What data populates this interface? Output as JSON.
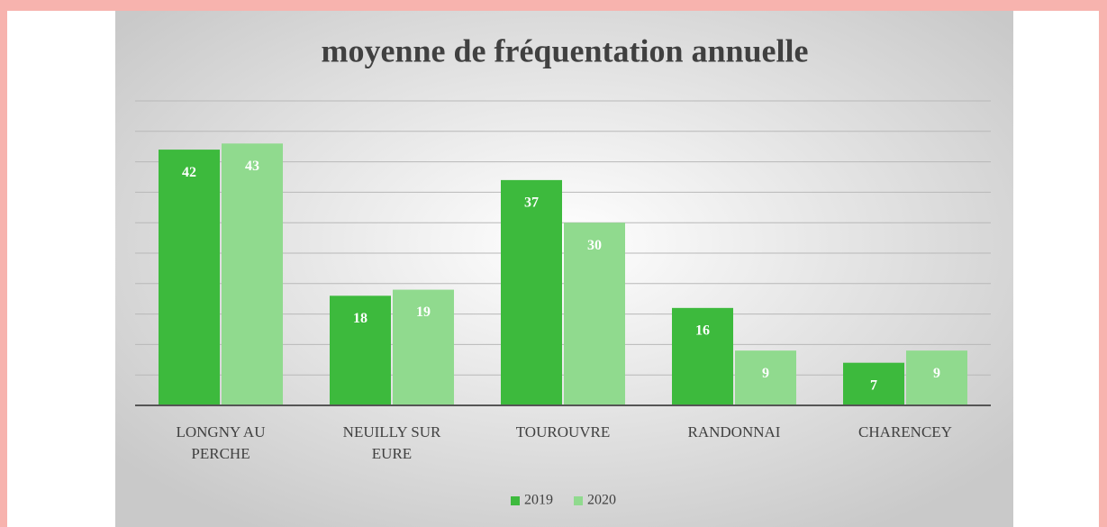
{
  "chart_data": {
    "type": "bar",
    "title": "moyenne de fréquentation annuelle",
    "categories": [
      "LONGNY AU PERCHE",
      "NEUILLY SUR EURE",
      "TOUROUVRE",
      "RANDONNAI",
      "CHARENCEY"
    ],
    "series": [
      {
        "name": "2019",
        "color": "#3dba3d",
        "values": [
          42,
          18,
          37,
          16,
          7
        ]
      },
      {
        "name": "2020",
        "color": "#90da8e",
        "values": [
          43,
          19,
          30,
          9,
          9
        ]
      }
    ],
    "ylim": [
      0,
      50
    ],
    "yticks": [
      0,
      5,
      10,
      15,
      20,
      25,
      30,
      35,
      40,
      45,
      50
    ],
    "grid": true,
    "legend": "bottom"
  }
}
